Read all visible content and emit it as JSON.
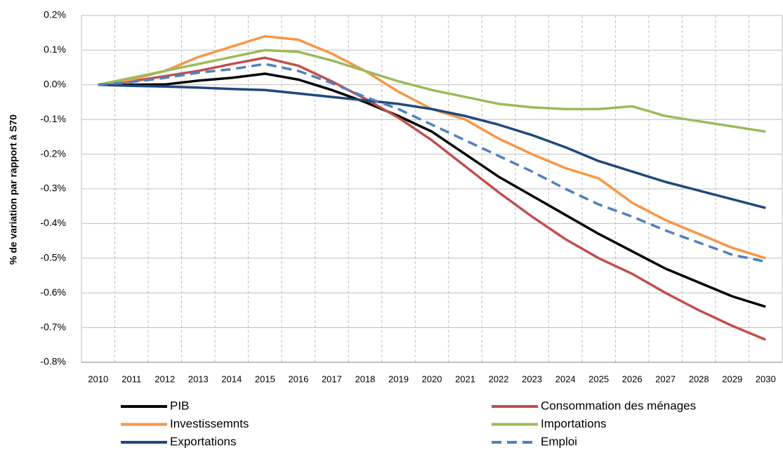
{
  "chart_data": {
    "type": "line",
    "y_label": "% de variation par rapport à S70",
    "categories": [
      "2010",
      "2011",
      "2012",
      "2013",
      "2014",
      "2015",
      "2016",
      "2017",
      "2018",
      "2019",
      "2020",
      "2021",
      "2022",
      "2023",
      "2024",
      "2025",
      "2026",
      "2027",
      "2028",
      "2029",
      "2030"
    ],
    "ylim": [
      -0.8,
      0.2
    ],
    "yticks": [
      {
        "value": 0.2,
        "label": "0.2%"
      },
      {
        "value": 0.1,
        "label": "0.1%"
      },
      {
        "value": 0,
        "label": "0.0%"
      },
      {
        "value": -0.1,
        "label": "-0.1%"
      },
      {
        "value": -0.2,
        "label": "-0.2%"
      },
      {
        "value": -0.3,
        "label": "-0.3%"
      },
      {
        "value": -0.4,
        "label": "-0.4%"
      },
      {
        "value": -0.5,
        "label": "-0.5%"
      },
      {
        "value": -0.6,
        "label": "-0.6%"
      },
      {
        "value": -0.7,
        "label": "-0.7%"
      },
      {
        "value": -0.8,
        "label": "-0.8%"
      }
    ],
    "grid": true,
    "legend": "bottom",
    "series": [
      {
        "name": "PIB",
        "color": "#000000",
        "style": "solid",
        "values": [
          0,
          0,
          0.001,
          0.012,
          0.02,
          0.032,
          0.015,
          -0.015,
          -0.05,
          -0.09,
          -0.135,
          -0.2,
          -0.265,
          -0.32,
          -0.375,
          -0.43,
          -0.48,
          -0.53,
          -0.57,
          -0.61,
          -0.64
        ]
      },
      {
        "name": "Consommation des ménages",
        "color": "#c0504d",
        "style": "solid",
        "values": [
          0,
          0.01,
          0.025,
          0.04,
          0.06,
          0.078,
          0.055,
          0.01,
          -0.04,
          -0.095,
          -0.16,
          -0.235,
          -0.31,
          -0.38,
          -0.445,
          -0.5,
          -0.545,
          -0.6,
          -0.65,
          -0.695,
          -0.735
        ]
      },
      {
        "name": "Investissemnts",
        "color": "#f79646",
        "style": "solid",
        "values": [
          0,
          0.015,
          0.04,
          0.08,
          0.11,
          0.14,
          0.13,
          0.09,
          0.04,
          -0.02,
          -0.07,
          -0.1,
          -0.155,
          -0.2,
          -0.24,
          -0.27,
          -0.34,
          -0.39,
          -0.43,
          -0.47,
          -0.5
        ]
      },
      {
        "name": "Importations",
        "color": "#9bbb59",
        "style": "solid",
        "values": [
          0,
          0.02,
          0.04,
          0.06,
          0.08,
          0.1,
          0.095,
          0.07,
          0.04,
          0.01,
          -0.015,
          -0.035,
          -0.055,
          -0.065,
          -0.07,
          -0.07,
          -0.062,
          -0.09,
          -0.105,
          -0.12,
          -0.135
        ]
      },
      {
        "name": "Exportations",
        "color": "#1f497d",
        "style": "solid",
        "values": [
          0,
          -0.003,
          -0.005,
          -0.008,
          -0.012,
          -0.015,
          -0.025,
          -0.035,
          -0.045,
          -0.055,
          -0.07,
          -0.09,
          -0.115,
          -0.145,
          -0.18,
          -0.22,
          -0.25,
          -0.28,
          -0.305,
          -0.33,
          -0.355
        ]
      },
      {
        "name": "Emploi",
        "color": "#4f81bd",
        "style": "dashed",
        "values": [
          0,
          0.008,
          0.02,
          0.035,
          0.045,
          0.06,
          0.04,
          0.005,
          -0.035,
          -0.07,
          -0.115,
          -0.16,
          -0.205,
          -0.25,
          -0.3,
          -0.345,
          -0.38,
          -0.42,
          -0.455,
          -0.49,
          -0.51
        ]
      }
    ]
  }
}
